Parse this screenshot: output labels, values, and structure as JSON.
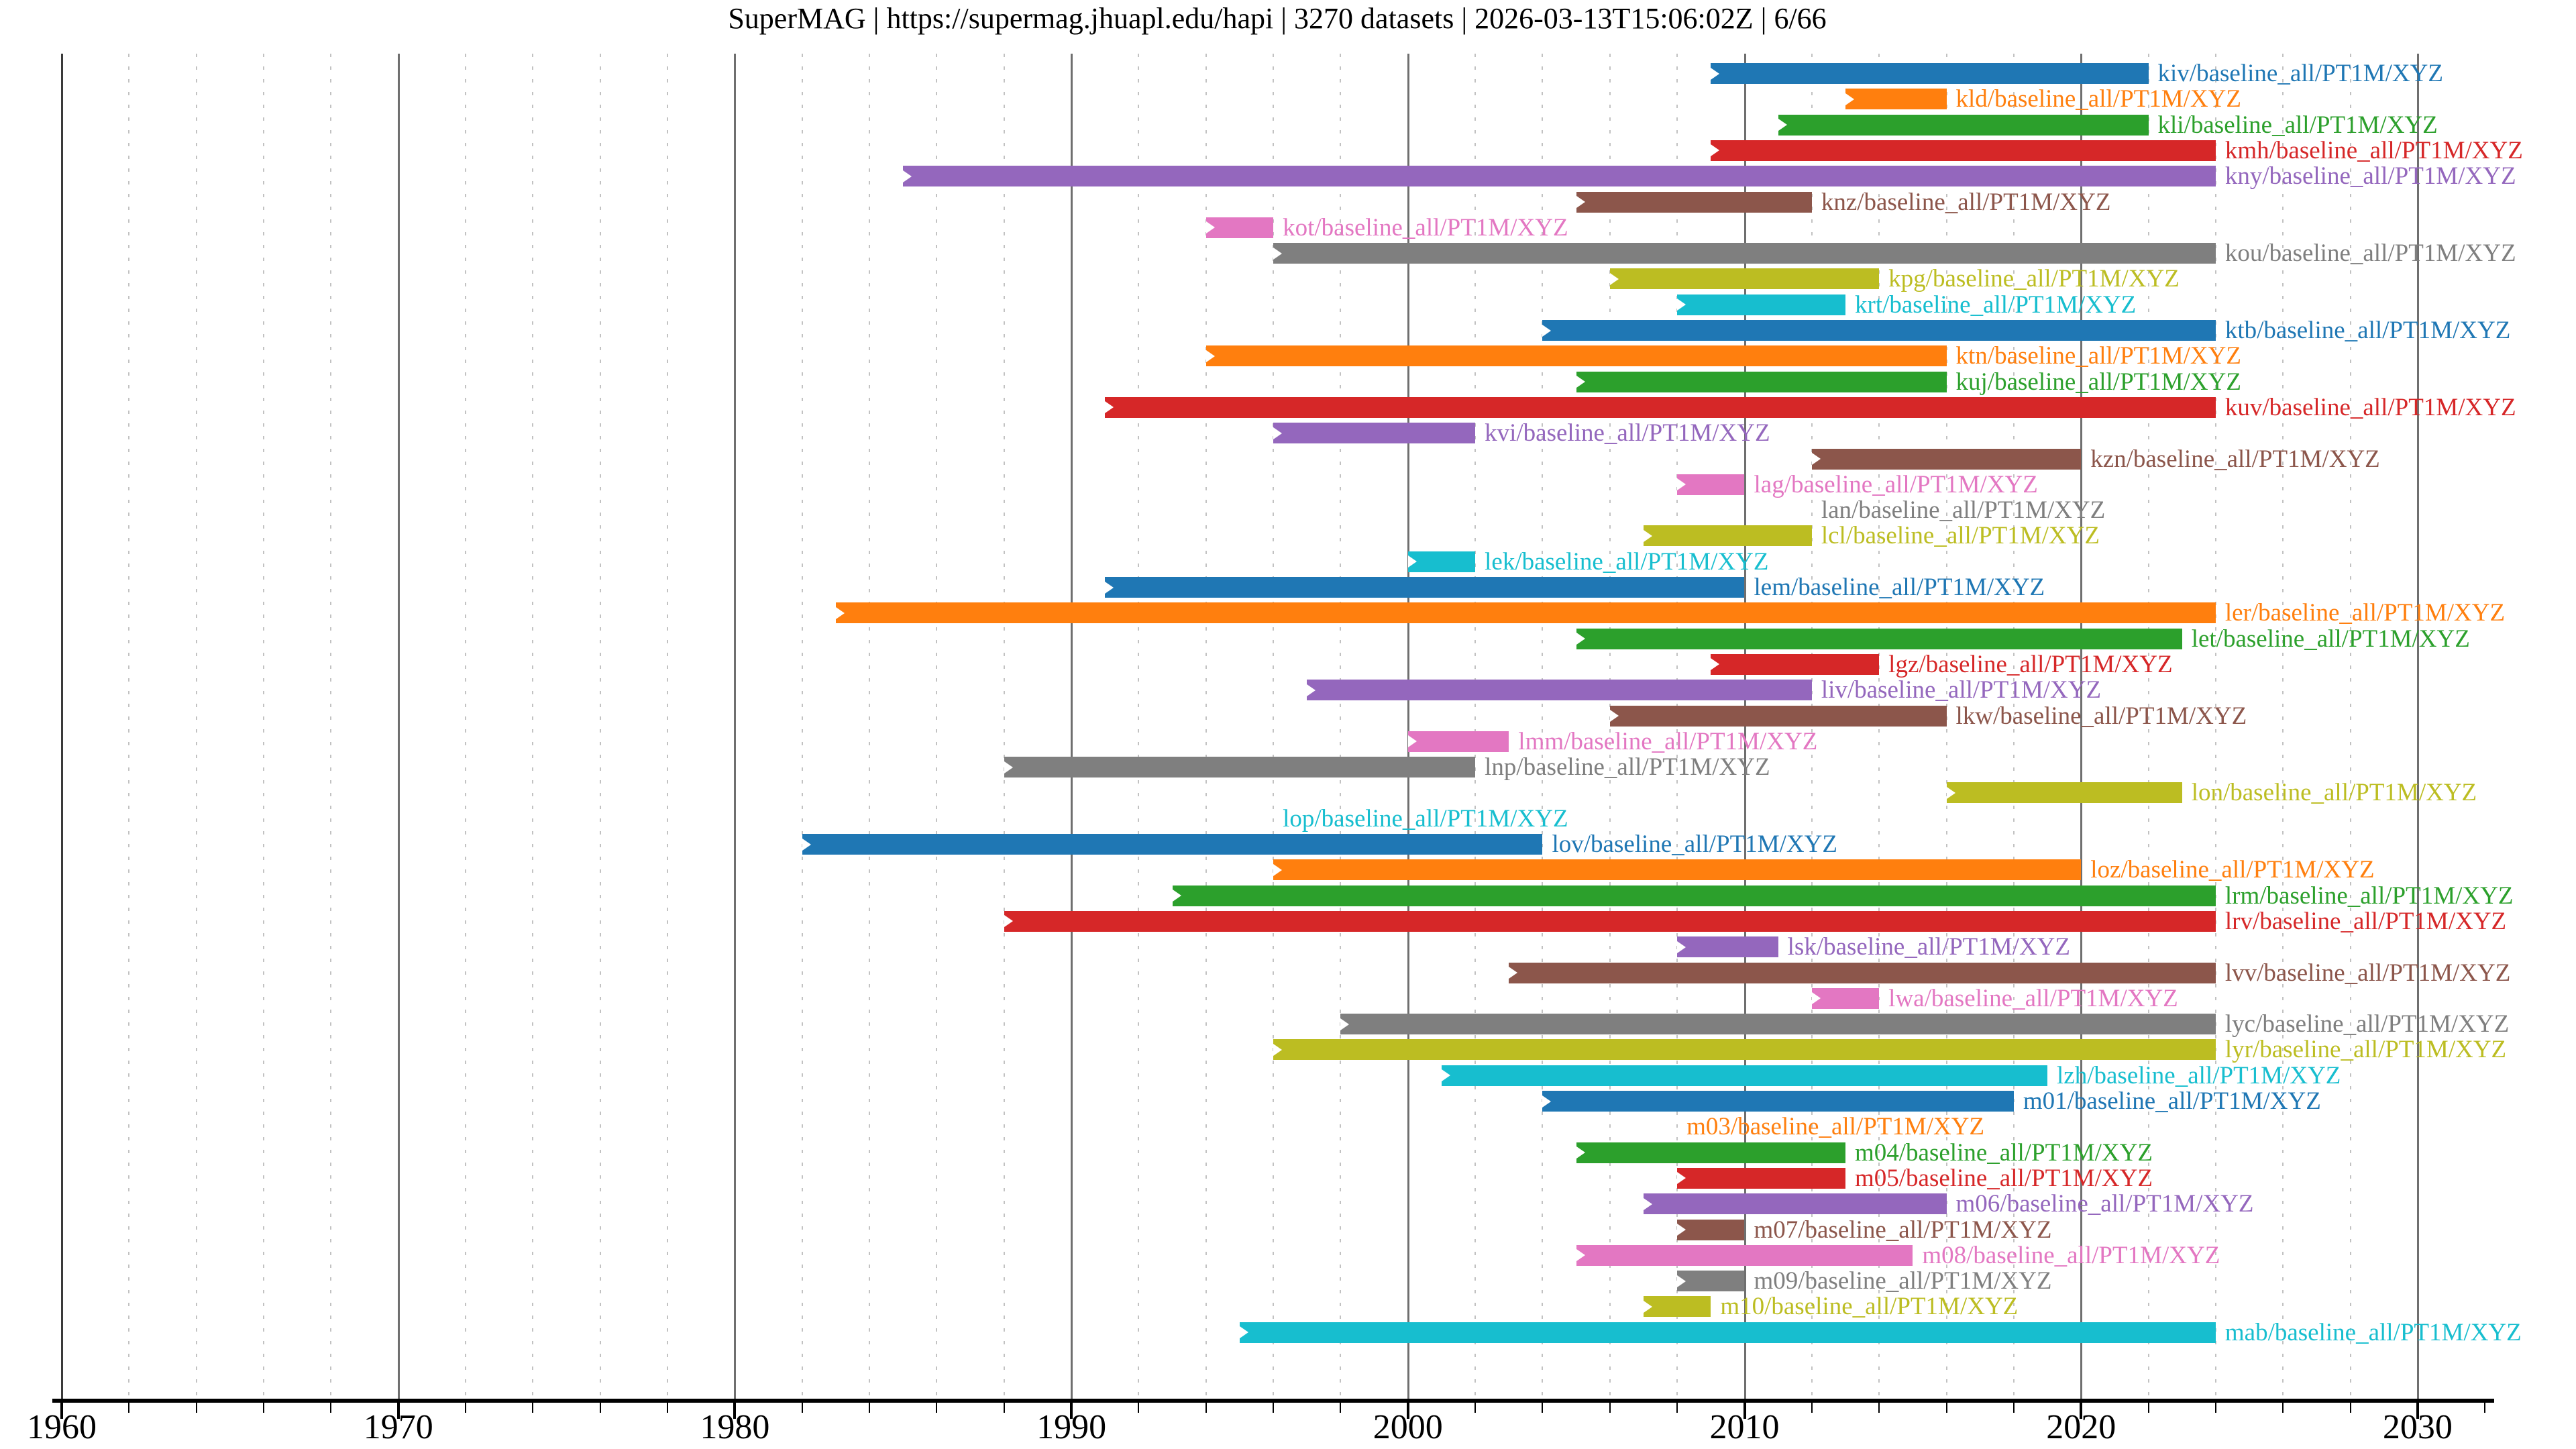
{
  "title": "SuperMAG | https://supermag.jhuapl.edu/hapi | 3270 datasets | 2026-03-13T15:06:02Z | 6/66",
  "colors": {
    "palette": [
      "#1f77b4",
      "#ff7f0e",
      "#2ca02c",
      "#d62728",
      "#9467bd",
      "#8c564b",
      "#e377c2",
      "#7f7f7f",
      "#bcbd22",
      "#17becf"
    ],
    "grid_major": "#6f6f6f",
    "grid_minor": "#c2c2c2",
    "axis": "#000000"
  },
  "chart_data": {
    "type": "bar",
    "subtype": "horizontal-availability-gantt",
    "title": "SuperMAG | https://supermag.jhuapl.edu/hapi | 3270 datasets | 2026-03-13T15:06:02Z | 6/66",
    "xlabel": "",
    "ylabel": "",
    "xlim": [
      1960,
      2032.3
    ],
    "x_major_ticks": [
      1960,
      1970,
      1980,
      1990,
      2000,
      2010,
      2020,
      2030
    ],
    "x_tick_labels": [
      "1960",
      "1970",
      "1980",
      "1990",
      "2000",
      "2010",
      "2020",
      "2030"
    ],
    "x_minor_step": 2,
    "grid": "major-solid-minor-dashed",
    "legend_position": "none",
    "label_suffix": "/baseline_all/PT1M/XYZ",
    "series": [
      {
        "id": "kiv",
        "label": "kiv/baseline_all/PT1M/XYZ",
        "start": 2009,
        "end": 2022,
        "color": "#1f77b4"
      },
      {
        "id": "kld",
        "label": "kld/baseline_all/PT1M/XYZ",
        "start": 2013,
        "end": 2016,
        "color": "#ff7f0e"
      },
      {
        "id": "kli",
        "label": "kli/baseline_all/PT1M/XYZ",
        "start": 2011,
        "end": 2022,
        "color": "#2ca02c"
      },
      {
        "id": "kmh",
        "label": "kmh/baseline_all/PT1M/XYZ",
        "start": 2009,
        "end": 2024,
        "color": "#d62728"
      },
      {
        "id": "kny",
        "label": "kny/baseline_all/PT1M/XYZ",
        "start": 1985,
        "end": 2024,
        "color": "#9467bd"
      },
      {
        "id": "knz",
        "label": "knz/baseline_all/PT1M/XYZ",
        "start": 2005,
        "end": 2012,
        "color": "#8c564b"
      },
      {
        "id": "kot",
        "label": "kot/baseline_all/PT1M/XYZ",
        "start": 1994,
        "end": 1996,
        "color": "#e377c2"
      },
      {
        "id": "kou",
        "label": "kou/baseline_all/PT1M/XYZ",
        "start": 1996,
        "end": 2024,
        "color": "#7f7f7f"
      },
      {
        "id": "kpg",
        "label": "kpg/baseline_all/PT1M/XYZ",
        "start": 2006,
        "end": 2014,
        "color": "#bcbd22"
      },
      {
        "id": "krt",
        "label": "krt/baseline_all/PT1M/XYZ",
        "start": 2008,
        "end": 2013,
        "color": "#17becf"
      },
      {
        "id": "ktb",
        "label": "ktb/baseline_all/PT1M/XYZ",
        "start": 2004,
        "end": 2024,
        "color": "#1f77b4"
      },
      {
        "id": "ktn",
        "label": "ktn/baseline_all/PT1M/XYZ",
        "start": 1994,
        "end": 2016,
        "color": "#ff7f0e"
      },
      {
        "id": "kuj",
        "label": "kuj/baseline_all/PT1M/XYZ",
        "start": 2005,
        "end": 2016,
        "color": "#2ca02c"
      },
      {
        "id": "kuv",
        "label": "kuv/baseline_all/PT1M/XYZ",
        "start": 1991,
        "end": 2024,
        "color": "#d62728"
      },
      {
        "id": "kvi",
        "label": "kvi/baseline_all/PT1M/XYZ",
        "start": 1996,
        "end": 2002,
        "color": "#9467bd"
      },
      {
        "id": "kzn",
        "label": "kzn/baseline_all/PT1M/XYZ",
        "start": 2012,
        "end": 2020,
        "color": "#8c564b"
      },
      {
        "id": "lag",
        "label": "lag/baseline_all/PT1M/XYZ",
        "start": 2008,
        "end": 2010,
        "color": "#e377c2"
      },
      {
        "id": "lan",
        "label": "lan/baseline_all/PT1M/XYZ",
        "start": 2012,
        "end": 2012,
        "color": "#7f7f7f"
      },
      {
        "id": "lcl",
        "label": "lcl/baseline_all/PT1M/XYZ",
        "start": 2007,
        "end": 2012,
        "color": "#bcbd22"
      },
      {
        "id": "lek",
        "label": "lek/baseline_all/PT1M/XYZ",
        "start": 2000,
        "end": 2002,
        "color": "#17becf"
      },
      {
        "id": "lem",
        "label": "lem/baseline_all/PT1M/XYZ",
        "start": 1991,
        "end": 2010,
        "color": "#1f77b4"
      },
      {
        "id": "ler",
        "label": "ler/baseline_all/PT1M/XYZ",
        "start": 1983,
        "end": 2024,
        "color": "#ff7f0e"
      },
      {
        "id": "let",
        "label": "let/baseline_all/PT1M/XYZ",
        "start": 2005,
        "end": 2023,
        "color": "#2ca02c"
      },
      {
        "id": "lgz",
        "label": "lgz/baseline_all/PT1M/XYZ",
        "start": 2009,
        "end": 2014,
        "color": "#d62728"
      },
      {
        "id": "liv",
        "label": "liv/baseline_all/PT1M/XYZ",
        "start": 1997,
        "end": 2012,
        "color": "#9467bd"
      },
      {
        "id": "lkw",
        "label": "lkw/baseline_all/PT1M/XYZ",
        "start": 2006,
        "end": 2016,
        "color": "#8c564b"
      },
      {
        "id": "lmm",
        "label": "lmm/baseline_all/PT1M/XYZ",
        "start": 2000,
        "end": 2003,
        "color": "#e377c2"
      },
      {
        "id": "lnp",
        "label": "lnp/baseline_all/PT1M/XYZ",
        "start": 1988,
        "end": 2002,
        "color": "#7f7f7f"
      },
      {
        "id": "lon",
        "label": "lon/baseline_all/PT1M/XYZ",
        "start": 2016,
        "end": 2023,
        "color": "#bcbd22"
      },
      {
        "id": "lop",
        "label": "lop/baseline_all/PT1M/XYZ",
        "start": 1996,
        "end": 1996,
        "color": "#17becf"
      },
      {
        "id": "lov",
        "label": "lov/baseline_all/PT1M/XYZ",
        "start": 1982,
        "end": 2004,
        "color": "#1f77b4"
      },
      {
        "id": "loz",
        "label": "loz/baseline_all/PT1M/XYZ",
        "start": 1996,
        "end": 2020,
        "color": "#ff7f0e"
      },
      {
        "id": "lrm",
        "label": "lrm/baseline_all/PT1M/XYZ",
        "start": 1993,
        "end": 2024,
        "color": "#2ca02c"
      },
      {
        "id": "lrv",
        "label": "lrv/baseline_all/PT1M/XYZ",
        "start": 1988,
        "end": 2024,
        "color": "#d62728"
      },
      {
        "id": "lsk",
        "label": "lsk/baseline_all/PT1M/XYZ",
        "start": 2008,
        "end": 2011,
        "color": "#9467bd"
      },
      {
        "id": "lvv",
        "label": "lvv/baseline_all/PT1M/XYZ",
        "start": 2003,
        "end": 2024,
        "color": "#8c564b"
      },
      {
        "id": "lwa",
        "label": "lwa/baseline_all/PT1M/XYZ",
        "start": 2012,
        "end": 2014,
        "color": "#e377c2"
      },
      {
        "id": "lyc",
        "label": "lyc/baseline_all/PT1M/XYZ",
        "start": 1998,
        "end": 2024,
        "color": "#7f7f7f"
      },
      {
        "id": "lyr",
        "label": "lyr/baseline_all/PT1M/XYZ",
        "start": 1996,
        "end": 2024,
        "color": "#bcbd22"
      },
      {
        "id": "lzh",
        "label": "lzh/baseline_all/PT1M/XYZ",
        "start": 2001,
        "end": 2019,
        "color": "#17becf"
      },
      {
        "id": "m01",
        "label": "m01/baseline_all/PT1M/XYZ",
        "start": 2004,
        "end": 2018,
        "color": "#1f77b4"
      },
      {
        "id": "m03",
        "label": "m03/baseline_all/PT1M/XYZ",
        "start": 2008,
        "end": 2008,
        "color": "#ff7f0e"
      },
      {
        "id": "m04",
        "label": "m04/baseline_all/PT1M/XYZ",
        "start": 2005,
        "end": 2013,
        "color": "#2ca02c"
      },
      {
        "id": "m05",
        "label": "m05/baseline_all/PT1M/XYZ",
        "start": 2008,
        "end": 2013,
        "color": "#d62728"
      },
      {
        "id": "m06",
        "label": "m06/baseline_all/PT1M/XYZ",
        "start": 2007,
        "end": 2016,
        "color": "#9467bd"
      },
      {
        "id": "m07",
        "label": "m07/baseline_all/PT1M/XYZ",
        "start": 2008,
        "end": 2010,
        "color": "#8c564b"
      },
      {
        "id": "m08",
        "label": "m08/baseline_all/PT1M/XYZ",
        "start": 2005,
        "end": 2015,
        "color": "#e377c2"
      },
      {
        "id": "m09",
        "label": "m09/baseline_all/PT1M/XYZ",
        "start": 2008,
        "end": 2010,
        "color": "#7f7f7f"
      },
      {
        "id": "m10",
        "label": "m10/baseline_all/PT1M/XYZ",
        "start": 2007,
        "end": 2009,
        "color": "#bcbd22"
      },
      {
        "id": "mab",
        "label": "mab/baseline_all/PT1M/XYZ",
        "start": 1995,
        "end": 2024,
        "color": "#17becf"
      }
    ]
  }
}
